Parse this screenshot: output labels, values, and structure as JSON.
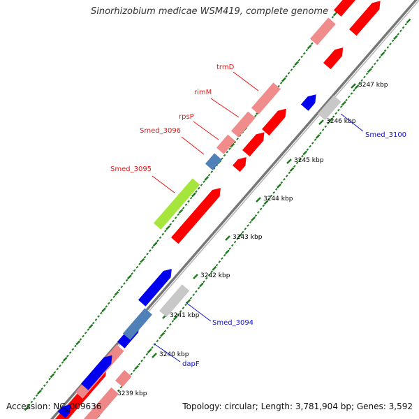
{
  "title": "Sinorhizobium medicae WSM419, complete genome",
  "accession": "Accession: NC_009636",
  "summary": "Topology: circular; Length: 3,781,904 bp; Genes: 3,592",
  "colors": {
    "backbone": "#8a8a8a",
    "tick": "#1e7a1e",
    "tick_label": "#000000",
    "red_label": "#ee1111",
    "blue_label": "#1111cc"
  },
  "ticks": [
    {
      "label": "3239 kbp"
    },
    {
      "label": "3240 kbp"
    },
    {
      "label": "3241 kbp"
    },
    {
      "label": "3242 kbp"
    },
    {
      "label": "3243 kbp"
    },
    {
      "label": "3244 kbp"
    },
    {
      "label": "3245 kbp"
    },
    {
      "label": "3246 kbp"
    },
    {
      "label": "3247 kbp"
    }
  ],
  "features": [
    {
      "name": "Smed_3095",
      "color": "#a6e63c",
      "strand": "reverse"
    },
    {
      "name": "Smed_3096",
      "color": "#4f81b8",
      "strand": "reverse"
    },
    {
      "name": "rpsP",
      "color": "#f08c8c",
      "strand": "reverse"
    },
    {
      "name": "rimM",
      "color": "#f08c8c",
      "strand": "reverse"
    },
    {
      "name": "trmD",
      "color": "#f08c8c",
      "strand": "reverse"
    },
    {
      "name": "Smed_3094",
      "color": "#c8c8c8",
      "strand": "reverse"
    },
    {
      "name": "dapF",
      "color": "#4f81b8",
      "strand": "reverse"
    },
    {
      "name": "Smed_3100",
      "color": "#c8c8c8",
      "strand": "reverse"
    }
  ],
  "labels": [
    {
      "text": "trmD",
      "color": "red"
    },
    {
      "text": "rimM",
      "color": "red"
    },
    {
      "text": "rpsP",
      "color": "red"
    },
    {
      "text": "Smed_3096",
      "color": "red"
    },
    {
      "text": "Smed_3095",
      "color": "red"
    },
    {
      "text": "Smed_3100",
      "color": "blue"
    },
    {
      "text": "Smed_3094",
      "color": "blue"
    },
    {
      "text": "dapF",
      "color": "blue"
    }
  ]
}
